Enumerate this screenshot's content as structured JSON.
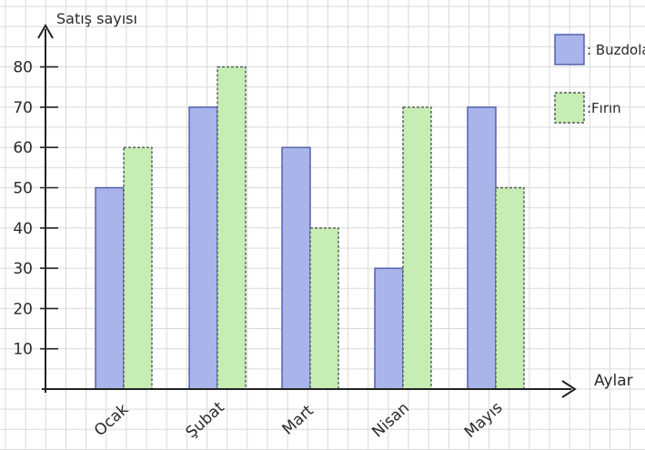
{
  "chart_data": {
    "type": "bar",
    "ylabel": "Satış sayısı",
    "xlabel": "Aylar",
    "categories": [
      "Ocak",
      "Şubat",
      "Mart",
      "Nisan",
      "Mayıs"
    ],
    "series": [
      {
        "name": ": Buzdolabı",
        "values": [
          50,
          70,
          60,
          30,
          70
        ],
        "color": "#a9b4ea",
        "stroke": "#4a5aa8"
      },
      {
        "name": ":Fırın",
        "values": [
          60,
          80,
          40,
          70,
          50
        ],
        "color": "#c6edb4",
        "stroke": "#555555"
      }
    ],
    "yticks": [
      10,
      20,
      30,
      40,
      50,
      60,
      70,
      80
    ],
    "ylim": [
      0,
      90
    ],
    "grid": true,
    "legend_position": "top-right"
  }
}
